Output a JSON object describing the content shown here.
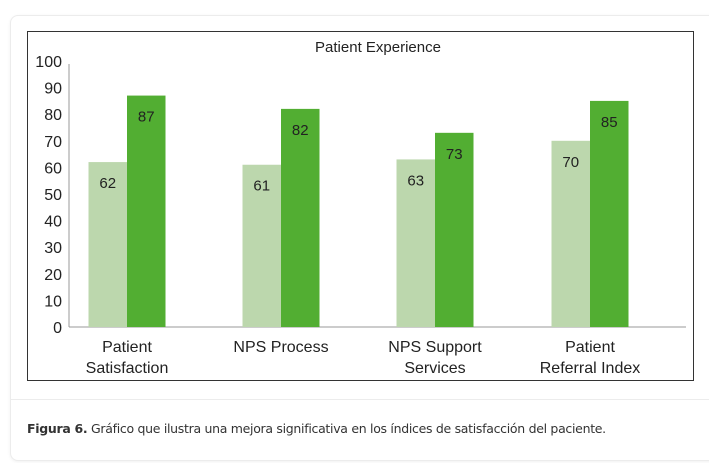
{
  "chart_data": {
    "type": "bar",
    "title": "Patient Experience",
    "categories": [
      [
        "Patient",
        "Satisfaction"
      ],
      [
        "NPS Process"
      ],
      [
        "NPS Support",
        "Services"
      ],
      [
        "Patient",
        "Referral Index"
      ]
    ],
    "series": [
      {
        "values": [
          62,
          61,
          63,
          70
        ],
        "color": "#bcd7ad"
      },
      {
        "values": [
          87,
          82,
          73,
          85
        ],
        "color": "#52ae32"
      }
    ],
    "ylim": [
      0,
      100
    ],
    "yticks": [
      0,
      10,
      20,
      30,
      40,
      50,
      60,
      70,
      80,
      90,
      100
    ],
    "grid": false,
    "legend": "none",
    "data_labels": true
  },
  "caption": {
    "label": "Figura 6.",
    "text": " Gráfico que ilustra una mejora significativa en los índices de satisfacción del paciente."
  }
}
